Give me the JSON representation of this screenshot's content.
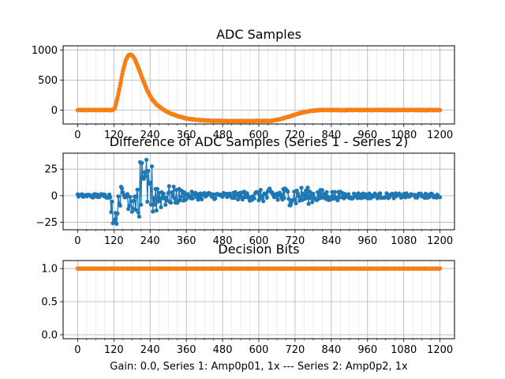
{
  "colors": {
    "series1": "#1f77b4",
    "series2": "#ff7f0e",
    "grid": "#b0b0b0",
    "axis": "#000000"
  },
  "chart_data": [
    {
      "id": "adc",
      "type": "line",
      "title": "ADC Samples",
      "xlabel": "",
      "ylabel": "",
      "xlim": [
        -48,
        1248
      ],
      "ylim": [
        -232,
        1070
      ],
      "xticks": [
        0,
        120,
        240,
        360,
        480,
        600,
        720,
        840,
        960,
        1080,
        1200
      ],
      "yticks": [
        0,
        500,
        1000
      ],
      "grid": true,
      "profile_knots": [
        [
          0,
          0
        ],
        [
          115,
          0
        ],
        [
          120,
          10
        ],
        [
          125,
          60
        ],
        [
          132,
          200
        ],
        [
          140,
          400
        ],
        [
          150,
          650
        ],
        [
          160,
          840
        ],
        [
          168,
          910
        ],
        [
          175,
          925
        ],
        [
          182,
          905
        ],
        [
          190,
          840
        ],
        [
          200,
          720
        ],
        [
          215,
          520
        ],
        [
          230,
          330
        ],
        [
          245,
          190
        ],
        [
          260,
          100
        ],
        [
          280,
          20
        ],
        [
          300,
          -40
        ],
        [
          330,
          -100
        ],
        [
          360,
          -140
        ],
        [
          400,
          -165
        ],
        [
          440,
          -178
        ],
        [
          500,
          -183
        ],
        [
          580,
          -183
        ],
        [
          640,
          -180
        ],
        [
          660,
          -165
        ],
        [
          680,
          -140
        ],
        [
          700,
          -110
        ],
        [
          720,
          -75
        ],
        [
          740,
          -45
        ],
        [
          770,
          -15
        ],
        [
          800,
          0
        ],
        [
          1200,
          0
        ]
      ],
      "series": [
        {
          "name": "Series 1",
          "color": "#1f77b4"
        },
        {
          "name": "Series 2",
          "color": "#ff7f0e"
        }
      ]
    },
    {
      "id": "diff",
      "type": "line",
      "title": "Difference of ADC Samples (Series 1 - Series 2)",
      "xlabel": "",
      "ylabel": "",
      "xlim": [
        -48,
        1248
      ],
      "ylim": [
        -32,
        40
      ],
      "xticks": [
        0,
        120,
        240,
        360,
        480,
        600,
        720,
        840,
        960,
        1080,
        1200
      ],
      "yticks": [
        -25,
        0,
        25
      ],
      "grid": true,
      "noise_envelope": [
        [
          0,
          1.5
        ],
        [
          110,
          2
        ],
        [
          120,
          12
        ],
        [
          130,
          20
        ],
        [
          140,
          10
        ],
        [
          160,
          8
        ],
        [
          180,
          20
        ],
        [
          200,
          22
        ],
        [
          220,
          20
        ],
        [
          240,
          25
        ],
        [
          260,
          18
        ],
        [
          280,
          12
        ],
        [
          300,
          10
        ],
        [
          330,
          8
        ],
        [
          360,
          4
        ],
        [
          500,
          3
        ],
        [
          580,
          5
        ],
        [
          620,
          6
        ],
        [
          660,
          8
        ],
        [
          700,
          9
        ],
        [
          720,
          10
        ],
        [
          760,
          8
        ],
        [
          800,
          6
        ],
        [
          840,
          5
        ],
        [
          900,
          3
        ],
        [
          1000,
          2.5
        ],
        [
          1200,
          2
        ]
      ],
      "series": [
        {
          "name": "Series 1 - Series 2",
          "color": "#1f77b4"
        }
      ]
    },
    {
      "id": "bits",
      "type": "line",
      "title": "Decision Bits",
      "xlabel": "Gain: 0.0, Series 1: Amp0p01, 1x --- Series 2: Amp0p2, 1x",
      "ylabel": "",
      "xlim": [
        -48,
        1248
      ],
      "ylim": [
        -0.06,
        1.12
      ],
      "xticks": [
        0,
        120,
        240,
        360,
        480,
        600,
        720,
        840,
        960,
        1080,
        1200
      ],
      "yticks": [
        0.0,
        0.5,
        1.0
      ],
      "grid": true,
      "constant_value": 1.0,
      "x_range": [
        0,
        1200
      ],
      "series": [
        {
          "name": "Series 1",
          "color": "#1f77b4"
        },
        {
          "name": "Series 2",
          "color": "#ff7f0e"
        }
      ]
    }
  ],
  "tick_text": {
    "x": [
      "0",
      "120",
      "240",
      "360",
      "480",
      "600",
      "720",
      "840",
      "960",
      "1080",
      "1200"
    ],
    "adc_y": [
      "0",
      "500",
      "1000"
    ],
    "diff_y": [
      "−25",
      "0",
      "25"
    ],
    "bits_y": [
      "0.0",
      "0.5",
      "1.0"
    ]
  }
}
